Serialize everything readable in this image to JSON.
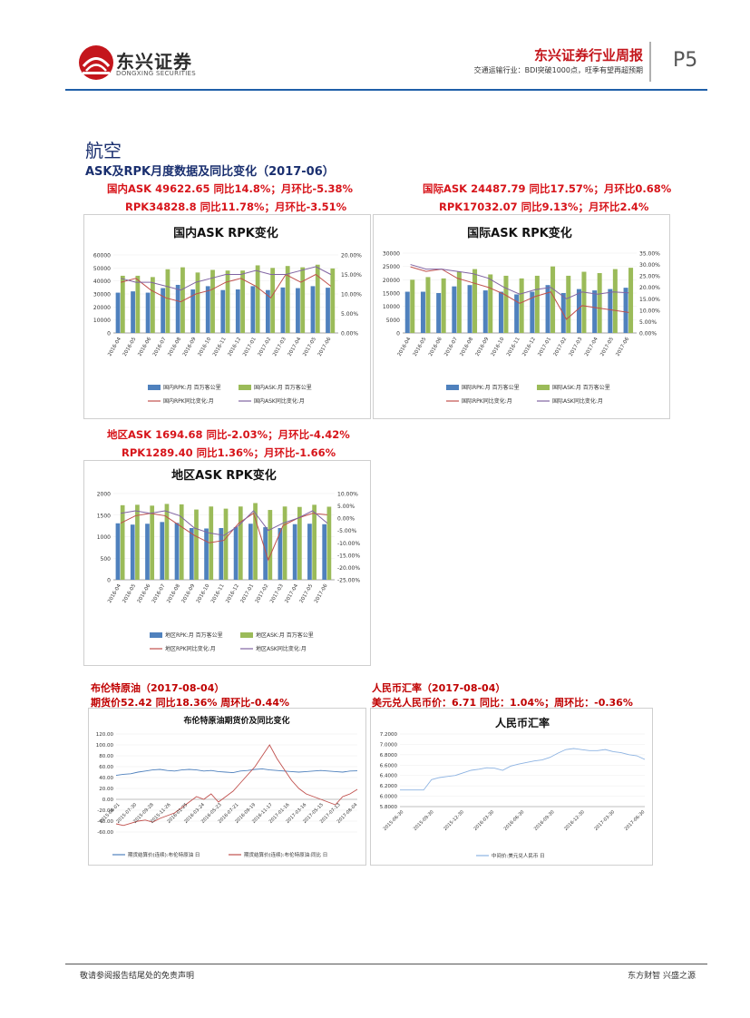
{
  "header": {
    "company_cn": "东兴证券",
    "company_en": "DONGXING SECURITIES",
    "report_title": "东兴证券行业周报",
    "report_subtitle": "交通运输行业：BDI突破1000点，旺季有望再超预期",
    "page": "P5"
  },
  "section": {
    "title": "航空",
    "subtitle": "ASK及RPK月度数据及同比变化（2017-06）"
  },
  "domestic": {
    "line1": "国内ASK 49622.65 同比14.8%；月环比-5.38%",
    "line2": "RPK34828.8 同比11.78%；月环比-3.51%"
  },
  "international": {
    "line1": "国际ASK 24487.79 同比17.57%；月环比0.68%",
    "line2": "RPK17032.07 同比9.13%；月环比2.4%"
  },
  "regional": {
    "line1": "地区ASK 1694.68 同比-2.03%；月环比-4.42%",
    "line2": "RPK1289.40 同比1.36%；月环比-1.66%"
  },
  "brent": {
    "line1": "布伦特原油（2017-08-04）",
    "line2": "期货价52.42 同比18.36% 周环比-0.44%"
  },
  "rmb": {
    "line1": "人民币汇率（2017-08-04）",
    "line2": "美元兑人民币价：6.71 同比：1.04%；周环比：-0.36%"
  },
  "footer": {
    "left": "敬请参阅报告结尾处的免责声明",
    "right": "东方财智 兴盛之源"
  },
  "colors": {
    "bar_blue": "#4f81bd",
    "bar_green": "#9bbb59",
    "line_red": "#c0504d",
    "line_purple": "#8064a2",
    "brand_red": "#c4161c",
    "rule_blue": "#1f5fa8"
  },
  "chart_data": [
    {
      "id": "domestic",
      "type": "bar",
      "title": "国内ASK RPK变化",
      "categories": [
        "2016-04",
        "2016-05",
        "2016-06",
        "2016-07",
        "2016-08",
        "2016-09",
        "2016-10",
        "2016-11",
        "2016-12",
        "2017-01",
        "2017-02",
        "2017-03",
        "2017-04",
        "2017-05",
        "2017-06"
      ],
      "x_ticks": [
        "2016-04",
        "2016-05",
        "2016-06",
        "2016-07",
        "2016-08",
        "2016-09",
        "2016-10",
        "2016-11",
        "2016-12",
        "2017-01",
        "2017-02",
        "2017-03",
        "2017-04",
        "2017-05",
        "2017-06"
      ],
      "ylim": [
        0,
        60000
      ],
      "y_ticks": [
        "0",
        "10000",
        "20000",
        "30000",
        "40000",
        "50000",
        "60000"
      ],
      "y2lim": [
        0,
        0.2
      ],
      "y2_ticks": [
        "0.00%",
        "5.00%",
        "10.00%",
        "15.00%",
        "20.00%"
      ],
      "series": [
        {
          "name": "国内RPK:月 百万客公里",
          "kind": "bar",
          "values": [
            31000,
            32000,
            31000,
            34500,
            37000,
            33500,
            36000,
            33000,
            33500,
            36000,
            33000,
            35000,
            34500,
            36000,
            34800
          ]
        },
        {
          "name": "国内ASK:月 百万客公里",
          "kind": "bar",
          "values": [
            44000,
            44000,
            43000,
            49000,
            50500,
            46500,
            48500,
            48000,
            48000,
            52000,
            50000,
            51500,
            50500,
            52500,
            49600
          ]
        },
        {
          "name": "国内RPK同比变化:月",
          "kind": "line",
          "axis": 2,
          "values": [
            0.13,
            0.14,
            0.11,
            0.09,
            0.08,
            0.1,
            0.11,
            0.13,
            0.14,
            0.12,
            0.09,
            0.15,
            0.13,
            0.15,
            0.12
          ]
        },
        {
          "name": "国内ASK同比变化:月",
          "kind": "line",
          "axis": 2,
          "values": [
            0.14,
            0.13,
            0.13,
            0.12,
            0.11,
            0.13,
            0.14,
            0.15,
            0.15,
            0.16,
            0.15,
            0.15,
            0.16,
            0.17,
            0.15
          ]
        }
      ]
    },
    {
      "id": "international",
      "type": "bar",
      "title": "国际ASK RPK变化",
      "categories": [
        "2016-04",
        "2016-05",
        "2016-06",
        "2016-07",
        "2016-08",
        "2016-09",
        "2016-10",
        "2016-11",
        "2016-12",
        "2017-01",
        "2017-02",
        "2017-03",
        "2017-04",
        "2017-05",
        "2017-06"
      ],
      "x_ticks": [
        "2016-04",
        "2016-05",
        "2016-06",
        "2016-07",
        "2016-08",
        "2016-09",
        "2016-10",
        "2016-11",
        "2016-12",
        "2017-01",
        "2017-02",
        "2017-03",
        "2017-04",
        "2017-05",
        "2017-06"
      ],
      "ylim": [
        0,
        30000
      ],
      "y_ticks": [
        "0",
        "5000",
        "10000",
        "15000",
        "20000",
        "25000",
        "30000"
      ],
      "y2lim": [
        0,
        0.35
      ],
      "y2_ticks": [
        "0.00%",
        "5.00%",
        "10.00%",
        "15.00%",
        "20.00%",
        "25.00%",
        "30.00%",
        "35.00%"
      ],
      "series": [
        {
          "name": "国际RPK:月 百万客公里",
          "kind": "bar",
          "values": [
            15500,
            15500,
            15000,
            17500,
            18000,
            16000,
            15500,
            14500,
            15500,
            18000,
            15000,
            16500,
            16000,
            16500,
            17000
          ]
        },
        {
          "name": "国际ASK:月 百万客公里",
          "kind": "bar",
          "values": [
            20000,
            21000,
            20500,
            23000,
            24000,
            22000,
            21500,
            20500,
            21500,
            25000,
            21500,
            23000,
            22500,
            24000,
            24500
          ]
        },
        {
          "name": "国际RPK同比变化:月",
          "kind": "line",
          "axis": 2,
          "values": [
            0.29,
            0.27,
            0.28,
            0.24,
            0.22,
            0.2,
            0.17,
            0.13,
            0.16,
            0.18,
            0.06,
            0.12,
            0.11,
            0.1,
            0.09
          ]
        },
        {
          "name": "国际ASK同比变化:月",
          "kind": "line",
          "axis": 2,
          "values": [
            0.3,
            0.28,
            0.28,
            0.27,
            0.26,
            0.24,
            0.2,
            0.17,
            0.19,
            0.2,
            0.15,
            0.18,
            0.17,
            0.18,
            0.176
          ]
        }
      ]
    },
    {
      "id": "regional",
      "type": "bar",
      "title": "地区ASK RPK变化",
      "categories": [
        "2016-04",
        "2016-05",
        "2016-06",
        "2016-07",
        "2016-08",
        "2016-09",
        "2016-10",
        "2016-11",
        "2016-12",
        "2017-01",
        "2017-02",
        "2017-03",
        "2017-04",
        "2017-05",
        "2017-06"
      ],
      "x_ticks": [
        "2016-04",
        "2016-05",
        "2016-06",
        "2016-07",
        "2016-08",
        "2016-09",
        "2016-10",
        "2016-11",
        "2016-12",
        "2017-01",
        "2017-02",
        "2017-03",
        "2017-04",
        "2017-05",
        "2017-06"
      ],
      "ylim": [
        0,
        2000
      ],
      "y_ticks": [
        "0",
        "500",
        "1000",
        "1500",
        "2000"
      ],
      "y2lim": [
        -0.25,
        0.1
      ],
      "y2_ticks": [
        "-25.00%",
        "-20.00%",
        "-15.00%",
        "-10.00%",
        "-5.00%",
        "0.00%",
        "5.00%",
        "10.00%"
      ],
      "series": [
        {
          "name": "地区RPK:月 百万客公里",
          "kind": "bar",
          "values": [
            1310,
            1280,
            1300,
            1340,
            1320,
            1200,
            1190,
            1200,
            1220,
            1300,
            1220,
            1200,
            1290,
            1300,
            1289
          ]
        },
        {
          "name": "地区ASK:月 百万客公里",
          "kind": "bar",
          "values": [
            1730,
            1740,
            1720,
            1760,
            1750,
            1630,
            1700,
            1650,
            1700,
            1780,
            1620,
            1700,
            1690,
            1740,
            1695
          ]
        },
        {
          "name": "地区RPK同比变化:月",
          "kind": "line",
          "axis": 2,
          "values": [
            -0.02,
            0.01,
            0.02,
            0.01,
            -0.03,
            -0.07,
            -0.1,
            -0.09,
            -0.02,
            0.02,
            -0.17,
            -0.03,
            0.0,
            0.02,
            0.014
          ]
        },
        {
          "name": "地区ASK同比变化:月",
          "kind": "line",
          "axis": 2,
          "values": [
            0.02,
            0.03,
            0.02,
            0.03,
            0.01,
            -0.04,
            -0.06,
            -0.07,
            -0.03,
            0.03,
            -0.05,
            -0.02,
            0.0,
            0.03,
            -0.02
          ]
        }
      ]
    },
    {
      "id": "brent",
      "type": "line",
      "title": "布伦特原油期货价及同比变化",
      "x_ticks": [
        "2015-06-01",
        "2015-07-30",
        "2015-09-28",
        "2015-11-26",
        "2016-01-25",
        "2016-03-24",
        "2016-05-23",
        "2016-07-21",
        "2016-09-19",
        "2016-11-17",
        "2017-01-16",
        "2017-03-16",
        "2017-05-15",
        "2017-07-13",
        "2017-08-04"
      ],
      "ylim": [
        -60,
        120
      ],
      "y_ticks": [
        "-60.00",
        "-40.00",
        "-20.00",
        "0.00",
        "20.00",
        "40.00",
        "60.00",
        "80.00",
        "100.00",
        "120.00"
      ],
      "series": [
        {
          "name": "期货结算价(连续):布伦特原油 日",
          "values": [
            44,
            46,
            47,
            50,
            52,
            54,
            55,
            53,
            52,
            54,
            55,
            54,
            52,
            53,
            51,
            50,
            49,
            52,
            53,
            55,
            56,
            54,
            53,
            52,
            51,
            50,
            51,
            52,
            53,
            52,
            51,
            50,
            52,
            52.42
          ]
        },
        {
          "name": "期货结算价(连续):布伦特原油:同比 日",
          "values": [
            -45,
            -48,
            -44,
            -40,
            -38,
            -42,
            -35,
            -30,
            -25,
            -15,
            -5,
            5,
            0,
            10,
            -5,
            5,
            15,
            30,
            45,
            60,
            80,
            100,
            75,
            55,
            35,
            20,
            10,
            5,
            0,
            -5,
            -10,
            5,
            10,
            18.36
          ]
        }
      ]
    },
    {
      "id": "rmb",
      "type": "line",
      "title": "人民币汇率",
      "x_ticks": [
        "2015-06-30",
        "2015-09-30",
        "2015-12-30",
        "2016-03-30",
        "2016-06-30",
        "2016-09-30",
        "2016-12-30",
        "2017-03-30",
        "2017-06-30"
      ],
      "ylim": [
        5.8,
        7.2
      ],
      "y_ticks": [
        "5.8000",
        "6.0000",
        "6.2000",
        "6.4000",
        "6.6000",
        "6.8000",
        "7.0000",
        "7.2000"
      ],
      "series": [
        {
          "name": "中间价:美元兑人民币 日",
          "values": [
            6.12,
            6.12,
            6.12,
            6.12,
            6.32,
            6.36,
            6.38,
            6.4,
            6.45,
            6.5,
            6.52,
            6.55,
            6.54,
            6.5,
            6.58,
            6.62,
            6.65,
            6.68,
            6.7,
            6.75,
            6.83,
            6.9,
            6.92,
            6.9,
            6.88,
            6.88,
            6.9,
            6.86,
            6.84,
            6.8,
            6.78,
            6.71
          ]
        }
      ]
    }
  ]
}
